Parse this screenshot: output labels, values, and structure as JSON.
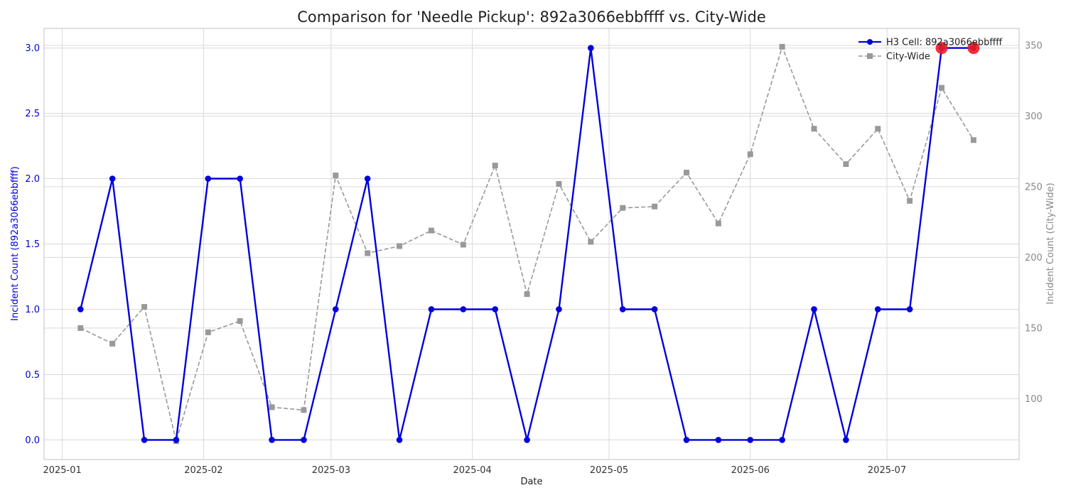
{
  "chart_data": {
    "type": "line",
    "title": "Comparison for 'Needle Pickup': 892a3066ebbffff vs. City-Wide",
    "xlabel": "Date",
    "ylabel_left": "Incident Count (892a3066ebbffff)",
    "ylabel_right": "Incident Count (City-Wide)",
    "x_axis": {
      "type": "date",
      "range": [
        "2024-12-28",
        "2025-07-30"
      ],
      "ticks": [
        "2025-01-01",
        "2025-02-01",
        "2025-03-01",
        "2025-04-01",
        "2025-05-01",
        "2025-06-01",
        "2025-07-01"
      ],
      "tick_labels": [
        "2025-01",
        "2025-02",
        "2025-03",
        "2025-04",
        "2025-05",
        "2025-06",
        "2025-07"
      ]
    },
    "y_left": {
      "range": [
        -0.15,
        3.15
      ],
      "ticks": [
        0.0,
        0.5,
        1.0,
        1.5,
        2.0,
        2.5,
        3.0
      ],
      "tick_labels": [
        "0.0",
        "0.5",
        "1.0",
        "1.5",
        "2.0",
        "2.5",
        "3.0"
      ]
    },
    "y_right": {
      "range": [
        57,
        362
      ],
      "ticks": [
        100,
        150,
        200,
        250,
        300,
        350
      ],
      "tick_labels": [
        "100",
        "150",
        "200",
        "250",
        "300",
        "350"
      ]
    },
    "grid": true,
    "legend": "top-right",
    "dates": [
      "2025-01-05",
      "2025-01-12",
      "2025-01-19",
      "2025-01-26",
      "2025-02-02",
      "2025-02-09",
      "2025-02-16",
      "2025-02-23",
      "2025-03-02",
      "2025-03-09",
      "2025-03-16",
      "2025-03-23",
      "2025-03-30",
      "2025-04-06",
      "2025-04-13",
      "2025-04-20",
      "2025-04-27",
      "2025-05-04",
      "2025-05-11",
      "2025-05-18",
      "2025-05-25",
      "2025-06-01",
      "2025-06-08",
      "2025-06-15",
      "2025-06-22",
      "2025-06-29",
      "2025-07-06",
      "2025-07-13",
      "2025-07-20"
    ],
    "series": [
      {
        "name": "H3 Cell: 892a3066ebbffff",
        "axis": "left",
        "color": "#0000dd",
        "style": "solid",
        "marker": "circle",
        "values": [
          1,
          2,
          0,
          0,
          2,
          2,
          0,
          0,
          1,
          2,
          0,
          1,
          1,
          1,
          0,
          1,
          3,
          1,
          1,
          0,
          0,
          0,
          0,
          1,
          0,
          1,
          1,
          3,
          3
        ],
        "highlighted_indices": [
          27,
          28
        ],
        "highlight_color": "#ee1c25"
      },
      {
        "name": "City-Wide",
        "axis": "right",
        "color": "#999999",
        "style": "dashed",
        "marker": "square",
        "values": [
          150,
          139,
          165,
          70,
          147,
          155,
          94,
          92,
          258,
          203,
          208,
          219,
          209,
          265,
          174,
          252,
          211,
          235,
          236,
          260,
          224,
          273,
          349,
          291,
          266,
          291,
          240,
          320,
          283
        ]
      }
    ]
  }
}
